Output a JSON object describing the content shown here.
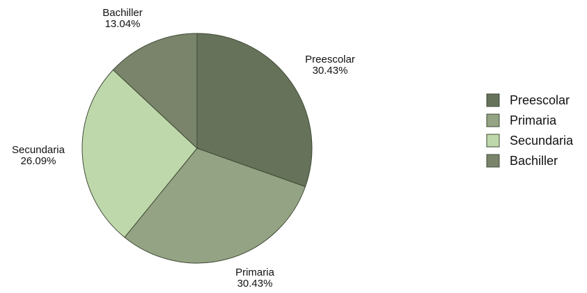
{
  "chart_data": {
    "type": "pie",
    "categories": [
      "Preescolar",
      "Primaria",
      "Secundaria",
      "Bachiller"
    ],
    "values": [
      30.43,
      30.43,
      26.09,
      13.04
    ],
    "value_labels": [
      "30.43%",
      "30.43%",
      "26.09%",
      "13.04%"
    ],
    "colors": [
      "#667259",
      "#94a383",
      "#bfd8ab",
      "#79846a"
    ],
    "start_angle": "12 o'clock",
    "direction": "clockwise",
    "legend": {
      "position": "right",
      "entries": [
        "Preescolar",
        "Primaria",
        "Secundaria",
        "Bachiller"
      ]
    }
  }
}
